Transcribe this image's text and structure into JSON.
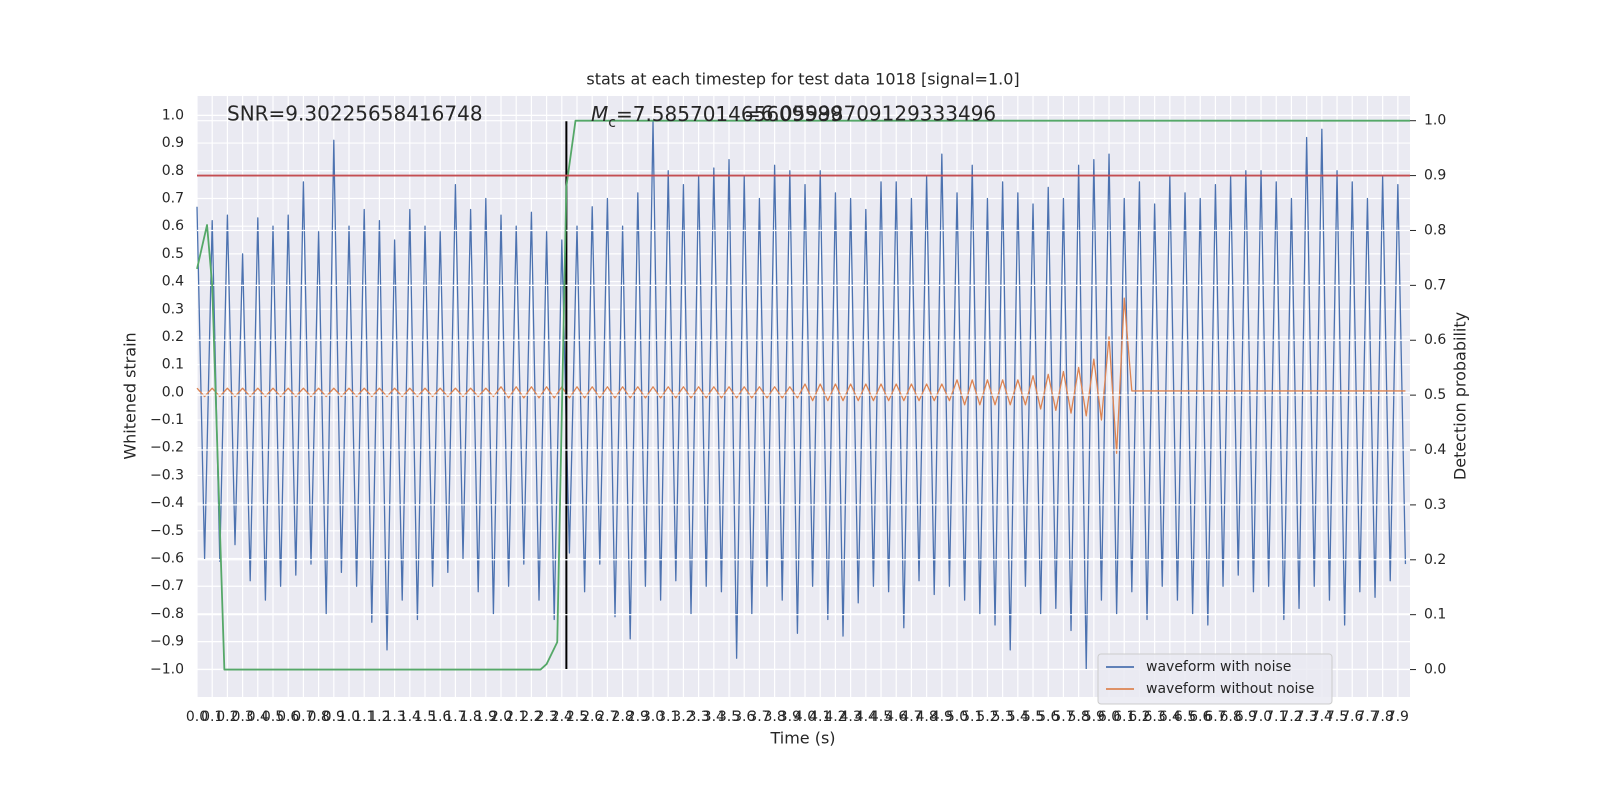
{
  "chart_data": {
    "type": "line",
    "title": "stats at each timestep for test data 1018 [signal=1.0]",
    "xlabel": "Time (s)",
    "ylabel": "Whitened strain",
    "y2label": "Detection probability",
    "grid": true,
    "legend": "lower right",
    "xlim": [
      0,
      7.98
    ],
    "ylim": [
      -1.1,
      1.07
    ],
    "y2lim": [
      -0.05,
      1.045
    ],
    "xticks": [
      {
        "value": 0,
        "label": "0.0"
      },
      0.1,
      0.2,
      0.3,
      0.4,
      0.5,
      0.6,
      0.7,
      0.8,
      0.9,
      {
        "value": 1,
        "label": "1.0"
      },
      1.1,
      1.2,
      1.3,
      1.4,
      1.5,
      1.6,
      1.7,
      1.8,
      1.9,
      {
        "value": 2,
        "label": "2.0"
      },
      2.1,
      2.2,
      2.3,
      2.4,
      2.5,
      2.6,
      2.7,
      2.8,
      2.9,
      {
        "value": 3,
        "label": "3.0"
      },
      3.1,
      3.2,
      3.3,
      3.4,
      3.5,
      3.6,
      3.7,
      3.8,
      3.9,
      {
        "value": 4,
        "label": "4.0"
      },
      4.1,
      4.2,
      4.3,
      4.4,
      4.5,
      4.6,
      4.7,
      4.8,
      4.9,
      {
        "value": 5,
        "label": "5.0"
      },
      5.1,
      5.2,
      5.3,
      5.4,
      5.5,
      5.6,
      5.7,
      5.8,
      5.9,
      {
        "value": 6,
        "label": "6.0"
      },
      6.1,
      6.2,
      6.3,
      6.4,
      6.5,
      6.6,
      6.7,
      6.8,
      6.9,
      {
        "value": 7,
        "label": "7.0"
      },
      7.1,
      7.2,
      7.3,
      7.4,
      7.5,
      7.6,
      7.7,
      7.8,
      7.9
    ],
    "yticks": [
      {
        "value": -1,
        "label": "−1.0"
      },
      {
        "value": -0.9,
        "label": "−0.9"
      },
      {
        "value": -0.8,
        "label": "−0.8"
      },
      {
        "value": -0.7,
        "label": "−0.7"
      },
      {
        "value": -0.6,
        "label": "−0.6"
      },
      {
        "value": -0.5,
        "label": "−0.5"
      },
      {
        "value": -0.4,
        "label": "−0.4"
      },
      {
        "value": -0.3,
        "label": "−0.3"
      },
      {
        "value": -0.2,
        "label": "−0.2"
      },
      {
        "value": -0.1,
        "label": "−0.1"
      },
      {
        "value": 0,
        "label": "0.0"
      },
      0.1,
      0.2,
      0.3,
      0.4,
      0.5,
      0.6,
      0.7,
      0.8,
      0.9,
      {
        "value": 1,
        "label": "1.0"
      }
    ],
    "y2ticks": [
      {
        "value": 0,
        "label": "0.0"
      },
      0.1,
      0.2,
      0.3,
      0.4,
      0.5,
      0.6,
      0.7,
      0.8,
      0.9,
      {
        "value": 1,
        "label": "1.0"
      }
    ],
    "x": [
      0,
      0.05,
      0.1,
      0.15,
      0.2,
      0.25,
      0.3,
      0.35,
      0.4,
      0.45,
      0.5,
      0.55,
      0.6,
      0.65,
      0.7,
      0.75,
      0.8,
      0.85,
      0.9,
      0.95,
      1,
      1.05,
      1.1,
      1.15,
      1.2,
      1.25,
      1.3,
      1.35,
      1.4,
      1.45,
      1.5,
      1.55,
      1.6,
      1.65,
      1.7,
      1.75,
      1.8,
      1.85,
      1.9,
      1.95,
      2,
      2.05,
      2.1,
      2.15,
      2.2,
      2.25,
      2.3,
      2.35,
      2.4,
      2.45,
      2.5,
      2.55,
      2.6,
      2.65,
      2.7,
      2.75,
      2.8,
      2.85,
      2.9,
      2.95,
      3,
      3.05,
      3.1,
      3.15,
      3.2,
      3.25,
      3.3,
      3.35,
      3.4,
      3.45,
      3.5,
      3.55,
      3.6,
      3.65,
      3.7,
      3.75,
      3.8,
      3.85,
      3.9,
      3.95,
      4,
      4.05,
      4.1,
      4.15,
      4.2,
      4.25,
      4.3,
      4.35,
      4.4,
      4.45,
      4.5,
      4.55,
      4.6,
      4.65,
      4.7,
      4.75,
      4.8,
      4.85,
      4.9,
      4.95,
      5,
      5.05,
      5.1,
      5.15,
      5.2,
      5.25,
      5.3,
      5.35,
      5.4,
      5.45,
      5.5,
      5.55,
      5.6,
      5.65,
      5.7,
      5.75,
      5.8,
      5.85,
      5.9,
      5.95,
      6,
      6.05,
      6.1,
      6.15,
      6.2,
      6.25,
      6.3,
      6.35,
      6.4,
      6.45,
      6.5,
      6.55,
      6.6,
      6.65,
      6.7,
      6.75,
      6.8,
      6.85,
      6.9,
      6.95,
      7,
      7.05,
      7.1,
      7.15,
      7.2,
      7.25,
      7.3,
      7.35,
      7.4,
      7.45,
      7.5,
      7.55,
      7.6,
      7.65,
      7.7,
      7.75,
      7.8,
      7.85,
      7.9,
      7.95
    ],
    "series": [
      {
        "name": "waveform with noise",
        "color": "#4c72b0",
        "values": [
          0.67,
          -0.6,
          0.62,
          -0.61,
          0.64,
          -0.55,
          0.5,
          -0.68,
          0.63,
          -0.75,
          0.6,
          -0.7,
          0.64,
          -0.66,
          0.76,
          -0.62,
          0.58,
          -0.8,
          0.91,
          -0.65,
          0.6,
          -0.7,
          0.66,
          -0.83,
          0.62,
          -0.93,
          0.55,
          -0.75,
          0.66,
          -0.82,
          0.6,
          -0.7,
          0.58,
          -0.65,
          0.75,
          -0.6,
          0.66,
          -0.72,
          0.7,
          -0.8,
          0.64,
          -0.7,
          0.6,
          -0.62,
          0.65,
          -0.75,
          0.58,
          -0.82,
          0.55,
          -0.58,
          0.6,
          -0.72,
          0.67,
          -0.62,
          0.7,
          -0.81,
          0.6,
          -0.89,
          0.72,
          -0.7,
          0.98,
          -0.75,
          0.8,
          -0.68,
          0.75,
          -0.8,
          0.78,
          -0.7,
          0.81,
          -0.72,
          0.84,
          -0.96,
          0.78,
          -0.8,
          0.7,
          -0.7,
          0.82,
          -0.75,
          0.8,
          -0.87,
          0.75,
          -0.7,
          0.8,
          -0.82,
          0.72,
          -0.88,
          0.7,
          -0.76,
          0.66,
          -0.7,
          0.76,
          -0.72,
          0.76,
          -0.85,
          0.7,
          -0.68,
          0.78,
          -0.73,
          0.86,
          -0.7,
          0.72,
          -0.75,
          0.82,
          -0.8,
          0.7,
          -0.84,
          0.76,
          -0.93,
          0.72,
          -0.7,
          0.68,
          -0.8,
          0.74,
          -0.78,
          0.7,
          -0.86,
          0.82,
          -1.0,
          0.84,
          -0.75,
          0.86,
          -0.8,
          0.7,
          -0.72,
          0.76,
          -0.82,
          0.68,
          -0.7,
          0.78,
          -0.75,
          0.72,
          -0.8,
          0.7,
          -0.84,
          0.75,
          -0.7,
          0.78,
          -0.66,
          0.8,
          -0.72,
          0.8,
          -0.7,
          0.76,
          -0.82,
          0.7,
          -0.78,
          0.92,
          -0.7,
          0.95,
          -0.75,
          0.8,
          -0.84,
          0.76,
          -0.72,
          0.7,
          -0.74,
          0.78,
          -0.68,
          0.75,
          -0.62
        ]
      },
      {
        "name": "waveform without noise",
        "color": "#dd8452",
        "values": [
          0.015,
          -0.015,
          0.015,
          -0.015,
          0.015,
          -0.015,
          0.015,
          -0.015,
          0.015,
          -0.015,
          0.015,
          -0.015,
          0.015,
          -0.015,
          0.015,
          -0.015,
          0.015,
          -0.015,
          0.015,
          -0.015,
          0.015,
          -0.015,
          0.015,
          -0.015,
          0.015,
          -0.015,
          0.015,
          -0.015,
          0.015,
          -0.015,
          0.015,
          -0.015,
          0.015,
          -0.015,
          0.015,
          -0.015,
          0.015,
          -0.015,
          0.015,
          -0.015,
          0.02,
          -0.02,
          0.02,
          -0.02,
          0.02,
          -0.02,
          0.02,
          -0.02,
          0.02,
          -0.02,
          0.02,
          -0.02,
          0.02,
          -0.02,
          0.02,
          -0.02,
          0.02,
          -0.02,
          0.02,
          -0.02,
          0.02,
          -0.02,
          0.02,
          -0.02,
          0.02,
          -0.02,
          0.02,
          -0.02,
          0.02,
          -0.02,
          0.02,
          -0.02,
          0.02,
          -0.02,
          0.02,
          -0.02,
          0.02,
          -0.02,
          0.02,
          -0.02,
          0.03,
          -0.03,
          0.03,
          -0.03,
          0.03,
          -0.03,
          0.03,
          -0.03,
          0.03,
          -0.03,
          0.03,
          -0.03,
          0.03,
          -0.03,
          0.03,
          -0.03,
          0.03,
          -0.03,
          0.03,
          -0.03,
          0.045,
          -0.045,
          0.045,
          -0.045,
          0.045,
          -0.045,
          0.045,
          -0.045,
          0.045,
          -0.045,
          0.06,
          -0.06,
          0.065,
          -0.065,
          0.075,
          -0.075,
          0.09,
          -0.085,
          0.12,
          -0.1,
          0.2,
          -0.22,
          0.34,
          0.005,
          0.005,
          0.005,
          0.005,
          0.005,
          0.005,
          0.005,
          0.005,
          0.005,
          0.005,
          0.005,
          0.005,
          0.005,
          0.005,
          0.005,
          0.005,
          0.005,
          0.005,
          0.005,
          0.005,
          0.005,
          0.005,
          0.005,
          0.005,
          0.005,
          0.005,
          0.005,
          0.005,
          0.005,
          0.005,
          0.005,
          0.005,
          0.005,
          0.005,
          0.005,
          0.005,
          0.005
        ]
      },
      {
        "color": "#55a868",
        "axis": "y2",
        "x": [
          0,
          0.066,
          0.1,
          0.18,
          2.26,
          2.3,
          2.37,
          2.43,
          2.49,
          7.98
        ],
        "values": [
          0.73,
          0.81,
          0.7,
          0.0,
          0.0,
          0.01,
          0.05,
          0.88,
          1.0,
          1.0
        ]
      }
    ],
    "hlines": [
      {
        "y": 0.9,
        "axis": "y2",
        "color": "#c44e52"
      }
    ],
    "vlines": [
      {
        "x": 2.43,
        "ymin": 0,
        "ymax": 1,
        "axis": "y2",
        "color": "#000000"
      }
    ],
    "annotations": [
      {
        "text": "SNR=9.30225658416748"
      },
      {
        "symbol": "M",
        "subscript": "c",
        "text": "=7.585701465609589"
      },
      {
        "text": "=6.05998709129333496"
      }
    ]
  }
}
